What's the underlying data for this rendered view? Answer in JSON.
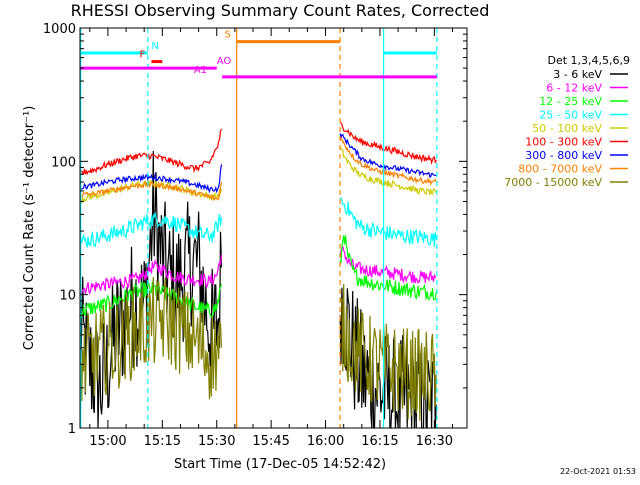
{
  "chart_data": {
    "type": "line",
    "title": "RHESSI Observing Summary Count Rates, Corrected",
    "xlabel": "Start Time (17-Dec-05 14:52:42)",
    "ylabel": "Corrected Count Rate (s⁻¹ detector⁻¹)",
    "yscale": "log",
    "ylim": [
      1,
      1000
    ],
    "xlim": [
      -7.7,
      99
    ],
    "x_units": "minutes after 15:00",
    "x_ticks": [
      {
        "value": 0,
        "label": "15:00"
      },
      {
        "value": 15,
        "label": "15:15"
      },
      {
        "value": 30,
        "label": "15:30"
      },
      {
        "value": 45,
        "label": "15:45"
      },
      {
        "value": 60,
        "label": "16:00"
      },
      {
        "value": 75,
        "label": "16:15"
      },
      {
        "value": 90,
        "label": "16:30"
      }
    ],
    "y_ticks": [
      {
        "value": 1,
        "label": "1"
      },
      {
        "value": 10,
        "label": "10"
      },
      {
        "value": 100,
        "label": "100"
      },
      {
        "value": 1000,
        "label": "1000"
      }
    ],
    "legend_title": "Det 1,3,4,5,6,9",
    "legend_position": "right",
    "timestamp": "22-Oct-2021 01:53",
    "series": [
      {
        "name": "3 - 6 keV",
        "color": "#000000",
        "noise": 0.5,
        "segments": [
          {
            "x": [
              -7.7,
              -5,
              -2,
              0,
              2,
              4,
              6,
              8,
              10,
              11.5,
              12.5,
              13.5,
              15,
              17,
              19,
              21,
              23,
              25,
              26,
              27,
              29,
              30.5,
              31.3
            ],
            "y": [
              5,
              3,
              2,
              3,
              5,
              6,
              8,
              9,
              8,
              20,
              42,
              30,
              18,
              13,
              12,
              14,
              18,
              16,
              12,
              8,
              5,
              7,
              16
            ]
          },
          {
            "x": [
              64,
              66,
              68,
              70,
              72,
              74,
              76,
              78,
              80,
              82,
              84,
              86,
              88,
              90.5
            ],
            "y": [
              10,
              6,
              3.5,
              2.5,
              2.2,
              2.0,
              1.8,
              1.7,
              1.6,
              1.6,
              1.5,
              1.5,
              1.4,
              1.5
            ]
          }
        ]
      },
      {
        "name": "6 - 12 keV",
        "color": "#ff00ff",
        "noise": 0.05,
        "segments": [
          {
            "x": [
              -7.7,
              -4,
              0,
              4,
              8,
              10,
              12,
              14,
              16,
              18,
              20,
              22,
              24,
              26,
              28,
              30,
              31.3
            ],
            "y": [
              11,
              11.5,
              12,
              12.5,
              13,
              14,
              16,
              16,
              15,
              14,
              13.5,
              13,
              13,
              13,
              12.5,
              14,
              20
            ]
          },
          {
            "x": [
              64,
              65,
              66,
              68,
              70,
              74,
              78,
              82,
              86,
              90.5
            ],
            "y": [
              19,
              22,
              18,
              16,
              15.5,
              15,
              14.5,
              14,
              13.5,
              13.5
            ]
          }
        ]
      },
      {
        "name": "12 - 25 keV",
        "color": "#00ff00",
        "noise": 0.06,
        "segments": [
          {
            "x": [
              -7.7,
              -4,
              0,
              4,
              8,
              11,
              13,
              16,
              19,
              22,
              25,
              28,
              30,
              31.3
            ],
            "y": [
              7.5,
              8,
              8.5,
              9.5,
              10.5,
              11,
              11,
              10,
              9.5,
              8.5,
              8,
              7.5,
              8,
              12
            ]
          },
          {
            "x": [
              64,
              65,
              66,
              68,
              70,
              74,
              78,
              82,
              86,
              90.5
            ],
            "y": [
              16,
              30,
              20,
              14,
              13,
              12,
              11.5,
              11,
              10.5,
              10.5
            ]
          }
        ]
      },
      {
        "name": "25 - 50 keV",
        "color": "#00ffff",
        "noise": 0.06,
        "segments": [
          {
            "x": [
              -7.7,
              -4,
              0,
              4,
              8,
              11,
              14,
              18,
              22,
              26,
              29,
              31.3
            ],
            "y": [
              25,
              26,
              28,
              30,
              33,
              36,
              37,
              35,
              31,
              28,
              28,
              38
            ]
          },
          {
            "x": [
              64,
              66,
              68,
              70,
              74,
              78,
              82,
              86,
              90.5
            ],
            "y": [
              52,
              45,
              36,
              32,
              30,
              28.5,
              27.5,
              27,
              26
            ]
          }
        ]
      },
      {
        "name": "50 - 100 keV",
        "color": "#cccc00",
        "noise": 0.025,
        "segments": [
          {
            "x": [
              -7.7,
              -4,
              0,
              4,
              8,
              12,
              16,
              20,
              24,
              28,
              30,
              31.3
            ],
            "y": [
              52,
              55,
              58,
              63,
              67,
              68,
              66,
              63,
              58,
              55,
              54,
              62
            ]
          },
          {
            "x": [
              64,
              66,
              68,
              70,
              74,
              78,
              82,
              86,
              90.5
            ],
            "y": [
              125,
              100,
              86,
              78,
              72,
              68,
              64,
              60,
              58
            ]
          }
        ]
      },
      {
        "name": "100 - 300 keV",
        "color": "#ff0000",
        "noise": 0.025,
        "segments": [
          {
            "x": [
              -7.7,
              -4,
              0,
              4,
              8,
              12,
              16,
              20,
              24,
              28,
              30.5,
              31.3
            ],
            "y": [
              82,
              86,
              95,
              103,
              110,
              110,
              103,
              95,
              88,
              98,
              135,
              175
            ]
          },
          {
            "x": [
              64,
              66,
              68,
              70,
              74,
              78,
              82,
              86,
              90.5
            ],
            "y": [
              190,
              170,
              150,
              140,
              130,
              122,
              114,
              107,
              102
            ]
          }
        ]
      },
      {
        "name": "300 - 800 keV",
        "color": "#0000ff",
        "noise": 0.02,
        "segments": [
          {
            "x": [
              -7.7,
              -4,
              0,
              4,
              8,
              12,
              16,
              20,
              24,
              28,
              30.5,
              31.3
            ],
            "y": [
              64,
              66,
              70,
              73,
              75,
              76,
              74,
              71,
              67,
              62,
              62,
              95
            ]
          },
          {
            "x": [
              64,
              66,
              68,
              70,
              74,
              78,
              82,
              86,
              90.5
            ],
            "y": [
              160,
              140,
              120,
              105,
              95,
              90,
              86,
              82,
              78
            ]
          }
        ]
      },
      {
        "name": "800 - 7000 keV",
        "color": "#ff8000",
        "noise": 0.02,
        "segments": [
          {
            "x": [
              -7.7,
              -4,
              0,
              4,
              8,
              12,
              16,
              20,
              24,
              28,
              30.5,
              31.3
            ],
            "y": [
              56,
              57,
              60,
              63,
              66,
              67,
              65,
              62,
              58,
              54,
              52,
              70
            ]
          },
          {
            "x": [
              64,
              66,
              68,
              70,
              74,
              78,
              82,
              86,
              90.5
            ],
            "y": [
              150,
              125,
              105,
              95,
              85,
              80,
              76,
              72,
              70
            ]
          }
        ]
      },
      {
        "name": "7000 - 15000 keV",
        "color": "#808000",
        "noise": 0.35,
        "segments": [
          {
            "x": [
              -7.7,
              -4,
              0,
              4,
              8,
              12,
              16,
              20,
              24,
              28,
              31.3
            ],
            "y": [
              3,
              3.5,
              4,
              4.5,
              5.5,
              6,
              6.5,
              5.5,
              4.5,
              3.5,
              4
            ]
          },
          {
            "x": [
              64,
              66,
              68,
              70,
              74,
              78,
              82,
              86,
              90.5
            ],
            "y": [
              6,
              5,
              4,
              3.5,
              3,
              2.8,
              2.6,
              2.5,
              2.5
            ]
          }
        ]
      }
    ],
    "vertical_lines": [
      {
        "x": -7.5,
        "color": "#00ffff",
        "style": "solid"
      },
      {
        "x": 11.0,
        "color": "#00ffff",
        "style": "dashed"
      },
      {
        "x": 76.0,
        "color": "#00ffff",
        "style": "solid"
      },
      {
        "x": 90.7,
        "color": "#00ffff",
        "style": "dashed"
      },
      {
        "x": 35.5,
        "color": "#ff8000",
        "style": "solid"
      },
      {
        "x": 64.0,
        "color": "#ff8000",
        "style": "dashed"
      }
    ],
    "flag_bars": [
      {
        "label": "N",
        "color": "#00ffff",
        "segments": [
          [
            -7.7,
            11
          ],
          [
            76,
            90.7
          ]
        ],
        "y": 650,
        "label_x": 13
      },
      {
        "label": "F",
        "color": "#ff0000",
        "segments": [
          [
            12,
            15
          ]
        ],
        "y": 560,
        "label_x": 9.5
      },
      {
        "label": "AO",
        "color": "#ff00ff",
        "segments": [
          [
            -7.7,
            30
          ]
        ],
        "y": 500,
        "label_x": 32
      },
      {
        "label": "A1",
        "color": "#ff00ff",
        "segments": [
          [
            31.5,
            90.7
          ]
        ],
        "y": 430,
        "label_x": 25.5
      },
      {
        "label": "S",
        "color": "#ff8000",
        "segments": [
          [
            35.5,
            64
          ]
        ],
        "y": 790,
        "label_x": 33
      }
    ]
  }
}
